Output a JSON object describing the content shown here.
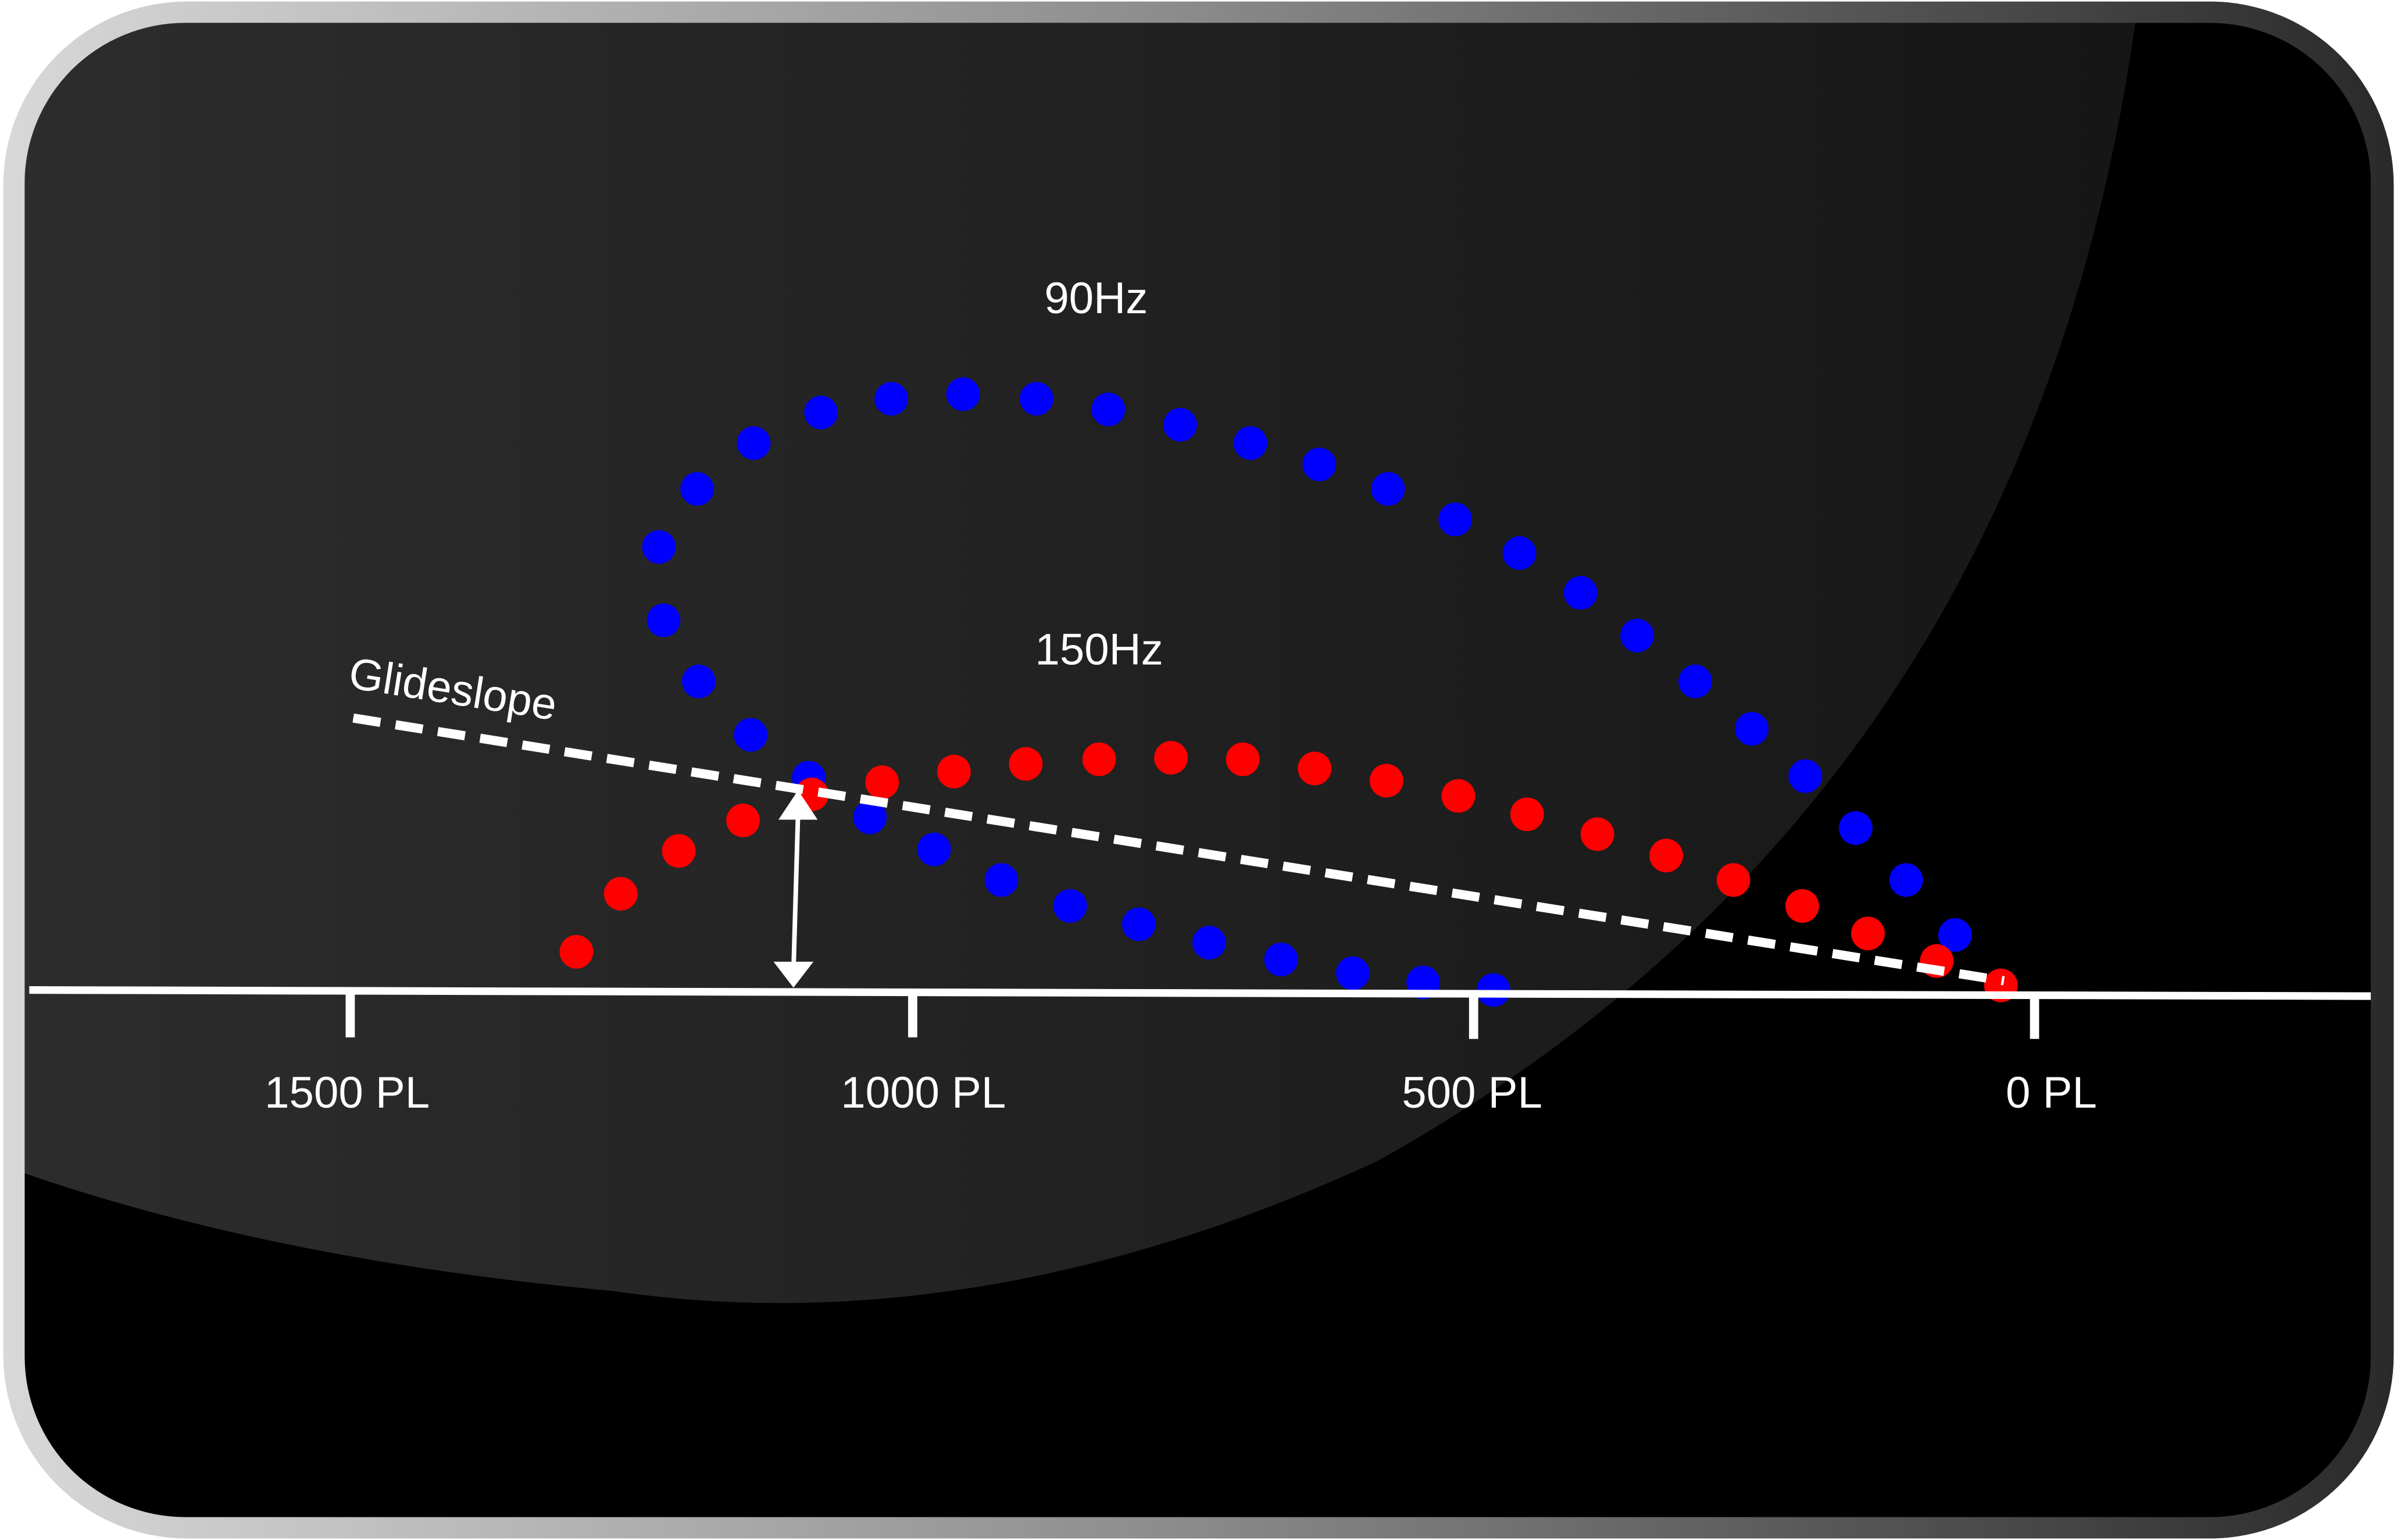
{
  "labels": {
    "upper_lobe": "90Hz",
    "lower_lobe": "150Hz",
    "glideslope": "Glideslope"
  },
  "axis": {
    "ticks": [
      "1500 PL",
      "1000 PL",
      "500 PL",
      "0 PL"
    ]
  }
}
